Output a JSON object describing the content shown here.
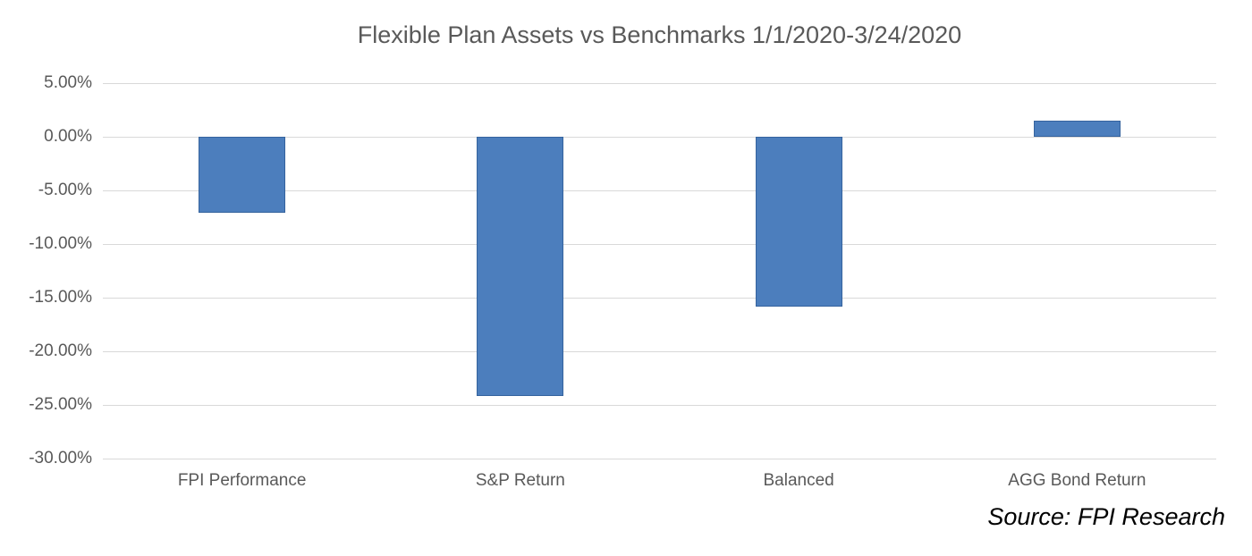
{
  "source_note": "Source: FPI Research",
  "colors": {
    "bar_fill": "#4C7EBD",
    "bar_border": "#35639E",
    "gridline": "#D9D9D9",
    "axis_text": "#595959",
    "title_text": "#595959",
    "source_text": "#000000",
    "background": "#FFFFFF"
  },
  "chart_data": {
    "type": "bar",
    "title": "Flexible Plan Assets vs Benchmarks 1/1/2020-3/24/2020",
    "categories": [
      "FPI Performance",
      "S&P Return",
      "Balanced",
      "AGG Bond Return"
    ],
    "values": [
      -7.1,
      -24.2,
      -15.8,
      1.5
    ],
    "value_unit": "percent",
    "ytick_labels": [
      "5.00%",
      "0.00%",
      "-5.00%",
      "-10.00%",
      "-15.00%",
      "-20.00%",
      "-25.00%",
      "-30.00%"
    ],
    "ylim": [
      -30,
      5
    ],
    "ytick_step": 5,
    "xlabel": "",
    "ylabel": "",
    "grid": true,
    "legend": false,
    "annotations": [
      "Source: FPI Research"
    ]
  }
}
